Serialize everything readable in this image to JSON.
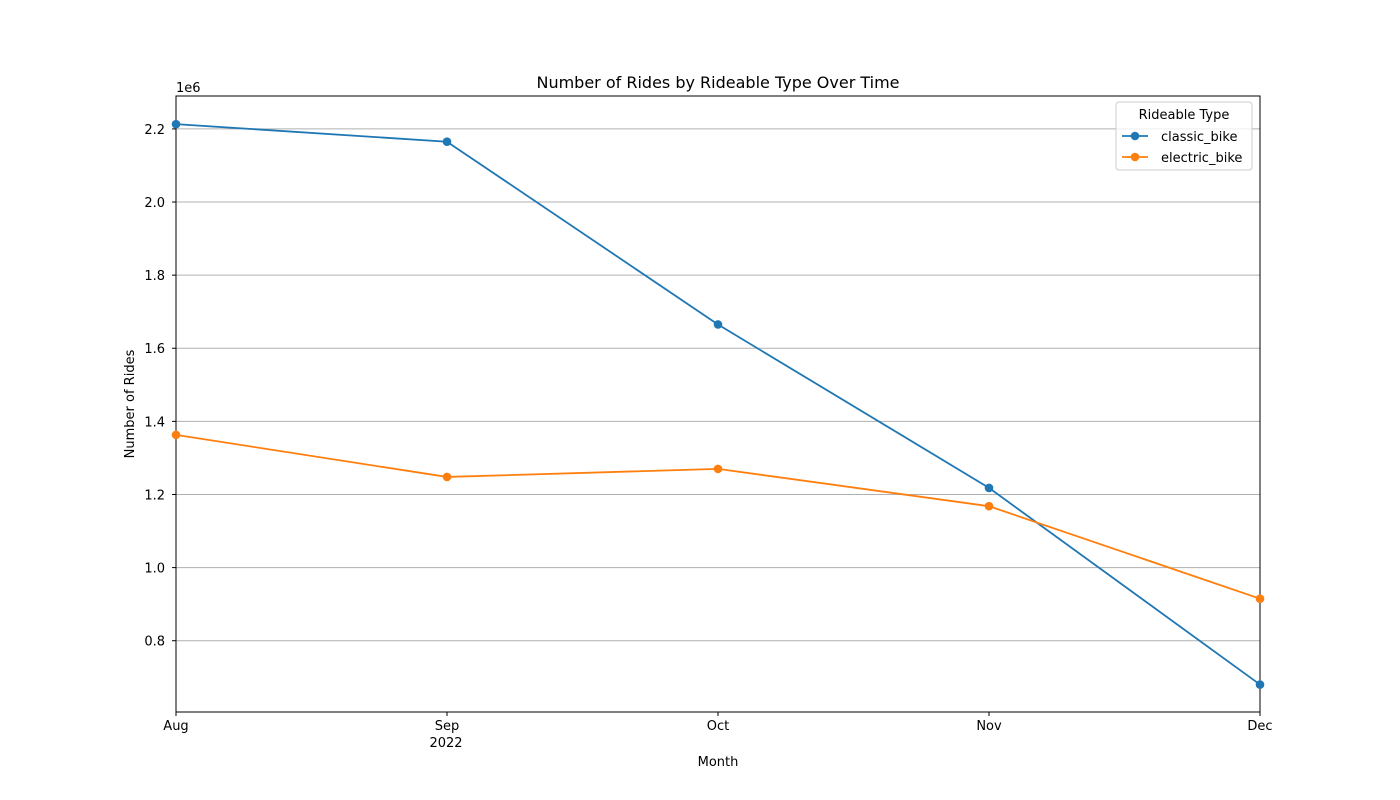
{
  "chart_data": {
    "type": "line",
    "title": "Number of Rides by Rideable Type Over Time",
    "xlabel": "Month",
    "ylabel": "Number of Rides",
    "y_multiplier_label": "1e6",
    "x": [
      "Aug",
      "Sep",
      "Oct",
      "Nov",
      "Dec"
    ],
    "x_year_label": "2022",
    "yticks": [
      0.8,
      1.0,
      1.2,
      1.4,
      1.6,
      1.8,
      2.0,
      2.2
    ],
    "ytick_labels": [
      "0.8",
      "1.0",
      "1.2",
      "1.4",
      "1.6",
      "1.8",
      "2.0",
      "2.2"
    ],
    "ylim": [
      0.605,
      2.29
    ],
    "grid": "y",
    "legend": {
      "title": "Rideable Type",
      "placement": "top-right"
    },
    "series": [
      {
        "name": "classic_bike",
        "color": "#1f77b4",
        "values": [
          2.213,
          2.165,
          1.665,
          1.218,
          0.68
        ]
      },
      {
        "name": "electric_bike",
        "color": "#ff7f0e",
        "values": [
          1.363,
          1.248,
          1.27,
          1.168,
          0.915
        ]
      }
    ]
  }
}
